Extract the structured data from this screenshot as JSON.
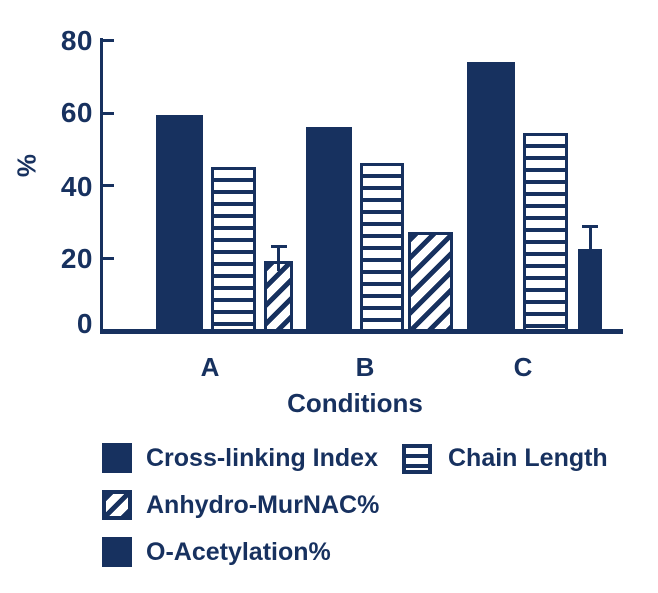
{
  "colors": {
    "navy": "#17315f",
    "background": "#ffffff"
  },
  "chart_data": {
    "type": "bar",
    "title": "",
    "xlabel": "Conditions",
    "ylabel": "%",
    "ylim": [
      0,
      80
    ],
    "yticks": [
      0,
      20,
      40,
      60,
      80
    ],
    "categories": [
      "A",
      "B",
      "C"
    ],
    "grid": false,
    "legend_position": "bottom",
    "series": [
      {
        "name": "Cross-linking Index",
        "pattern": "solid",
        "values": [
          60,
          56.5,
          74.5
        ],
        "errors": [
          null,
          null,
          null
        ]
      },
      {
        "name": "Chain Length",
        "pattern": "hstripes",
        "values": [
          45.5,
          46.5,
          55
        ],
        "errors": [
          null,
          null,
          null
        ]
      },
      {
        "name": "Anhydro-MurNAC%",
        "pattern": "diagonal",
        "values": [
          19.5,
          27.5,
          null
        ],
        "errors": [
          4.5,
          null,
          null
        ]
      },
      {
        "name": "O-Acetylation%",
        "pattern": "solid",
        "values": [
          null,
          null,
          23
        ],
        "errors": [
          null,
          null,
          6.5
        ]
      }
    ]
  }
}
